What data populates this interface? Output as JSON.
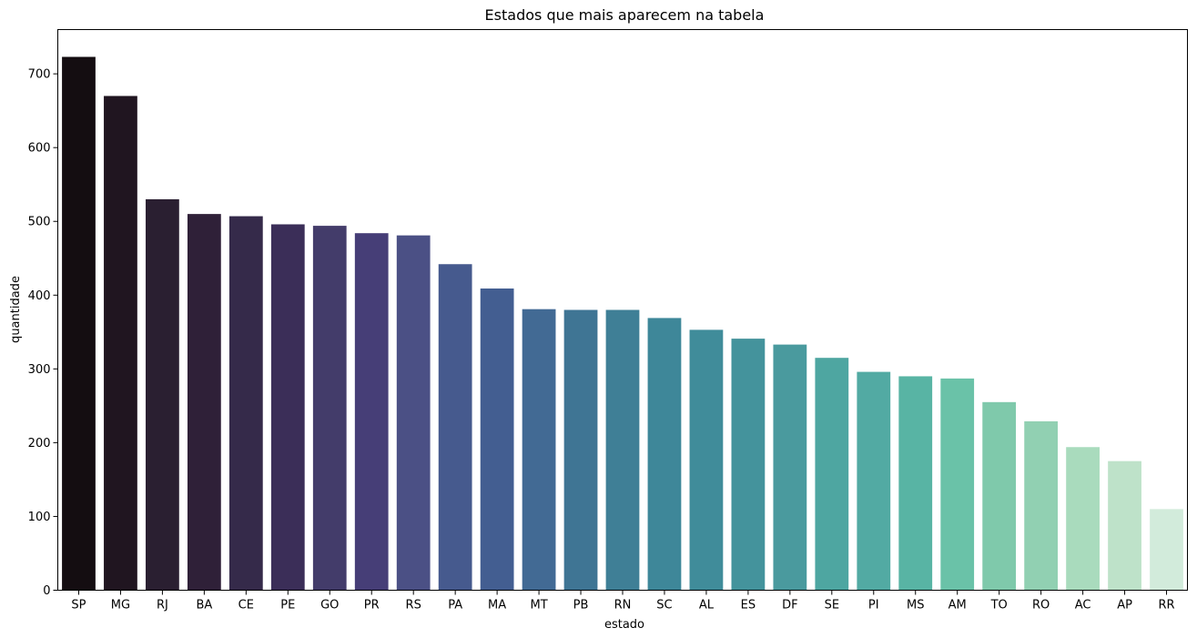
{
  "chart_data": {
    "type": "bar",
    "title": "Estados que mais aparecem na tabela",
    "xlabel": "estado",
    "ylabel": "quantidade",
    "categories": [
      "SP",
      "MG",
      "RJ",
      "BA",
      "CE",
      "PE",
      "GO",
      "PR",
      "RS",
      "PA",
      "MA",
      "MT",
      "PB",
      "RN",
      "SC",
      "AL",
      "ES",
      "DF",
      "SE",
      "PI",
      "MS",
      "AM",
      "TO",
      "RO",
      "AC",
      "AP",
      "RR"
    ],
    "values": [
      723,
      670,
      530,
      510,
      507,
      496,
      494,
      484,
      481,
      442,
      409,
      381,
      380,
      380,
      369,
      353,
      341,
      333,
      315,
      296,
      290,
      287,
      255,
      229,
      194,
      175,
      110
    ],
    "ylim": [
      0,
      760
    ],
    "yticks": [
      0,
      100,
      200,
      300,
      400,
      500,
      600,
      700
    ],
    "colors": [
      "#140d11",
      "#201520",
      "#2a1f31",
      "#2f2038",
      "#352a4a",
      "#3b2e58",
      "#433c6a",
      "#463e77",
      "#4b5085",
      "#465a8e",
      "#435e91",
      "#426a94",
      "#3f7594",
      "#3f7f96",
      "#3e8799",
      "#408c9a",
      "#44939c",
      "#4a9a9e",
      "#4ea6a1",
      "#52aaa3",
      "#58b4a4",
      "#6ac2a8",
      "#7fc9ab",
      "#91d0b2",
      "#a9dbbd",
      "#bee2c9",
      "#d2ebdb"
    ],
    "grid": false,
    "legend": "none"
  }
}
